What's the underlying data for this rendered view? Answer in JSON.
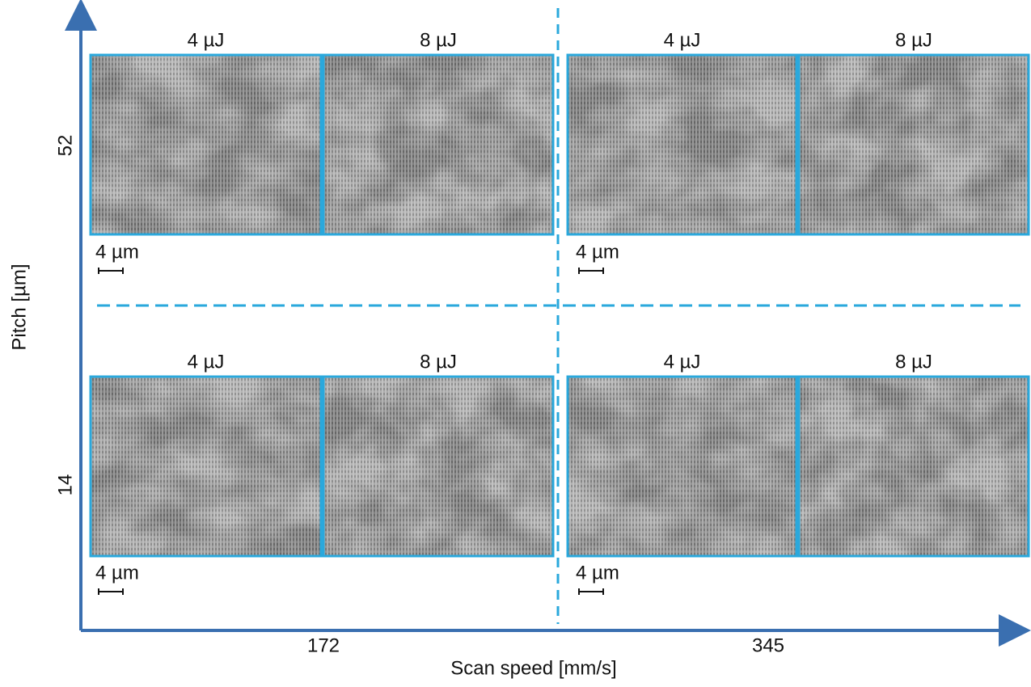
{
  "figure": {
    "x_axis": {
      "label": "Scan speed [mm/s]",
      "ticks": [
        "172",
        "345"
      ]
    },
    "y_axis": {
      "label": "Pitch [µm]",
      "ticks": [
        "52",
        "14"
      ]
    },
    "panels": [
      {
        "label": "4 µJ"
      },
      {
        "label": "8 µJ"
      },
      {
        "label": "4 µJ"
      },
      {
        "label": "8 µJ"
      },
      {
        "label": "4 µJ"
      },
      {
        "label": "8 µJ"
      },
      {
        "label": "4 µJ"
      },
      {
        "label": "8 µJ"
      }
    ],
    "scale_bars": [
      {
        "label": "4 µm"
      },
      {
        "label": "4 µm"
      },
      {
        "label": "4 µm"
      },
      {
        "label": "4 µm"
      }
    ]
  }
}
